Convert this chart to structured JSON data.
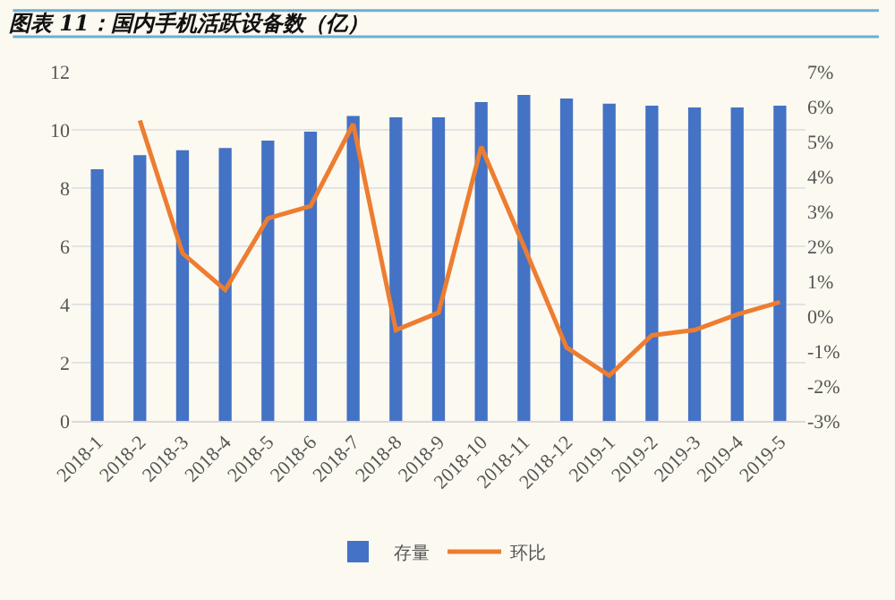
{
  "chart_data": {
    "type": "bar",
    "title": "图表 11：国内手机活跃设备数（亿）",
    "categories": [
      "2018-1",
      "2018-2",
      "2018-3",
      "2018-4",
      "2018-5",
      "2018-6",
      "2018-7",
      "2018-8",
      "2018-9",
      "2018-10",
      "2018-11",
      "2018-12",
      "2019-1",
      "2019-2",
      "2019-3",
      "2019-4",
      "2019-5"
    ],
    "series": [
      {
        "name": "存量",
        "color": "#4472c4",
        "values": [
          8.65,
          9.13,
          9.3,
          9.38,
          9.63,
          9.94,
          10.48,
          10.43,
          10.43,
          10.95,
          11.2,
          11.08,
          10.9,
          10.83,
          10.77,
          10.77,
          10.83
        ]
      },
      {
        "name": "环比",
        "type": "line",
        "axis": "y2",
        "color": "#ed7d31",
        "values": [
          null,
          5.6,
          1.8,
          0.75,
          2.8,
          3.15,
          5.5,
          -0.4,
          0.1,
          4.85,
          2.0,
          -0.9,
          -1.7,
          -0.55,
          -0.4,
          0.05,
          0.4
        ]
      }
    ],
    "ylim": [
      0,
      12
    ],
    "yticks": [
      0,
      2,
      4,
      6,
      8,
      10,
      12
    ],
    "y2lim": [
      -3,
      7
    ],
    "y2ticks": [
      {
        "value": -3,
        "label": "-3%"
      },
      {
        "value": -2,
        "label": "-2%"
      },
      {
        "value": -1,
        "label": "-1%"
      },
      {
        "value": 0,
        "label": "0%"
      },
      {
        "value": 1,
        "label": "1%"
      },
      {
        "value": 2,
        "label": "2%"
      },
      {
        "value": 3,
        "label": "3%"
      },
      {
        "value": 4,
        "label": "4%"
      },
      {
        "value": 5,
        "label": "5%"
      },
      {
        "value": 6,
        "label": "6%"
      },
      {
        "value": 7,
        "label": "7%"
      }
    ],
    "grid": "y",
    "legend": "bottom"
  }
}
